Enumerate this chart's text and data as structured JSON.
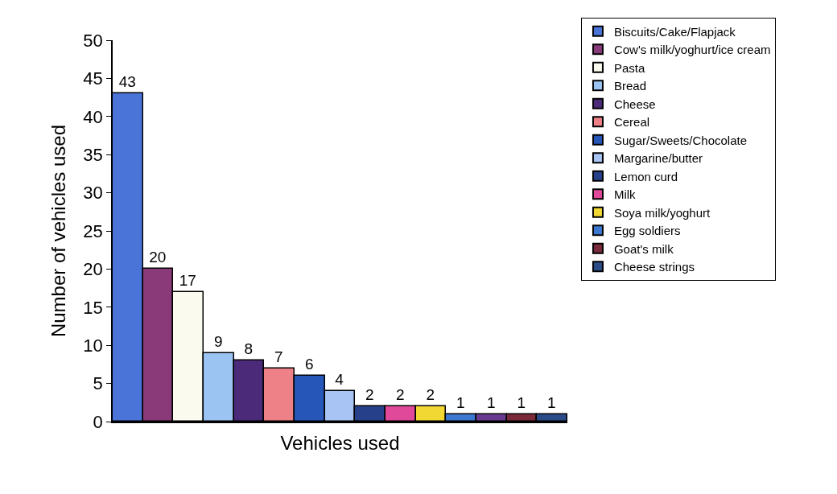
{
  "chart_data": {
    "type": "bar",
    "xlabel": "Vehicles used",
    "ylabel": "Number of vehicles used",
    "categories": [
      null
    ],
    "series": [
      {
        "name": "Biscuits/Cake/Flapjack",
        "color": "#4a74d8",
        "values": [
          43
        ]
      },
      {
        "name": "Cow's milk/yoghurt/ice cream",
        "color": "#8a3a78",
        "values": [
          20
        ]
      },
      {
        "name": "Pasta",
        "color": "#fbfaee",
        "values": [
          17
        ]
      },
      {
        "name": "Bread",
        "color": "#9cc4f2",
        "values": [
          9
        ]
      },
      {
        "name": "Cheese",
        "color": "#4b2a7a",
        "values": [
          8
        ]
      },
      {
        "name": "Cereal",
        "color": "#ee8088",
        "values": [
          7
        ]
      },
      {
        "name": "Sugar/Sweets/Chocolate",
        "color": "#2656b8",
        "values": [
          6
        ]
      },
      {
        "name": "Margarine/butter",
        "color": "#a8c4f4",
        "values": [
          4
        ]
      },
      {
        "name": "Lemon curd",
        "color": "#26408a",
        "values": [
          2
        ]
      },
      {
        "name": "Milk",
        "color": "#e0489a",
        "values": [
          2
        ]
      },
      {
        "name": "Soya milk/yoghurt",
        "color": "#f2d832",
        "values": [
          2
        ]
      },
      {
        "name": "Egg soldiers",
        "color": "#3c78d0",
        "values": [
          1
        ]
      },
      {
        "color": "#6a3a90",
        "values": [
          1
        ]
      },
      {
        "name": "Goat's milk",
        "color": "#7a2a3a",
        "values": [
          1
        ]
      },
      {
        "name": "Cheese strings",
        "color": "#2a4a88",
        "values": [
          1
        ]
      }
    ],
    "ylim": [
      0,
      50
    ],
    "yticks": [
      0,
      5,
      10,
      15,
      20,
      25,
      30,
      35,
      40,
      45,
      50
    ],
    "data_labels": true,
    "legend": "right"
  }
}
